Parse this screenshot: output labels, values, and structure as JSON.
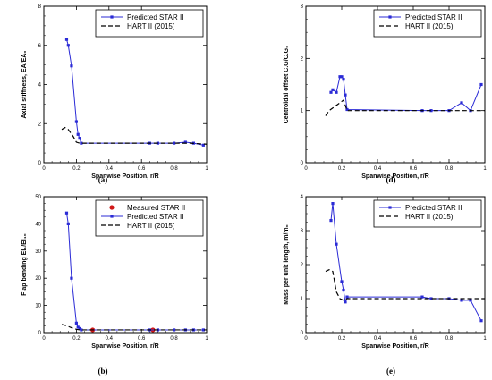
{
  "chart_data": [
    {
      "id": "a",
      "type": "line",
      "caption": "(a)",
      "xlabel": "Spanwise Position, r/R",
      "ylabel": "Axial stiffness, EA/EA₀",
      "xlim": [
        0,
        1
      ],
      "ylim": [
        0,
        8
      ],
      "xticks": [
        "0",
        "0.2",
        "0.4",
        "0.6",
        "0.8",
        "1"
      ],
      "yticks": [
        "0",
        "2",
        "4",
        "6",
        "8"
      ],
      "legend_position": "top-right",
      "series": [
        {
          "name": "Predicted STAR II",
          "color": "#2b2bd6",
          "style": "solid-square",
          "x": [
            0.14,
            0.15,
            0.17,
            0.2,
            0.21,
            0.22,
            0.23,
            0.65,
            0.7,
            0.8,
            0.87,
            0.92,
            0.98
          ],
          "y": [
            6.3,
            6.0,
            4.95,
            2.1,
            1.45,
            1.25,
            1.0,
            1.0,
            1.0,
            1.0,
            1.05,
            1.0,
            0.9
          ]
        },
        {
          "name": "HART II (2015)",
          "color": "#000000",
          "style": "dashed",
          "x": [
            0.11,
            0.13,
            0.15,
            0.18,
            0.2,
            0.22,
            0.25,
            0.4,
            0.6,
            0.8,
            0.9,
            1.0
          ],
          "y": [
            1.7,
            1.8,
            1.7,
            1.35,
            1.05,
            1.0,
            1.0,
            1.0,
            1.0,
            1.0,
            1.0,
            0.95
          ]
        }
      ]
    },
    {
      "id": "d",
      "type": "line",
      "caption": "(d)",
      "xlabel": "Spanwise Position, r/R",
      "ylabel": "Centroidal offset  C.G/C.G₀",
      "xlim": [
        0,
        1
      ],
      "ylim": [
        0,
        3
      ],
      "xticks": [
        "0",
        "0.2",
        "0.4",
        "0.6",
        "0.8",
        "1"
      ],
      "yticks": [
        "0",
        "1",
        "2",
        "3"
      ],
      "legend_position": "top-right",
      "series": [
        {
          "name": "Predicted STAR II",
          "color": "#2b2bd6",
          "style": "solid-square",
          "x": [
            0.14,
            0.15,
            0.17,
            0.19,
            0.2,
            0.21,
            0.22,
            0.23,
            0.65,
            0.7,
            0.8,
            0.87,
            0.92,
            0.98
          ],
          "y": [
            1.35,
            1.4,
            1.35,
            1.65,
            1.65,
            1.6,
            1.3,
            1.02,
            1.0,
            1.0,
            1.0,
            1.15,
            1.0,
            1.5
          ]
        },
        {
          "name": "HART II (2015)",
          "color": "#000000",
          "style": "dashed",
          "x": [
            0.11,
            0.13,
            0.15,
            0.17,
            0.19,
            0.21,
            0.23,
            0.4,
            0.6,
            0.8,
            1.0
          ],
          "y": [
            0.9,
            1.0,
            1.05,
            1.1,
            1.15,
            1.2,
            1.0,
            1.0,
            1.0,
            1.0,
            1.0
          ]
        }
      ]
    },
    {
      "id": "b",
      "type": "line",
      "caption": "(b)",
      "xlabel": "Spanwise Position, r/R",
      "ylabel": "Flap bending EI₁/EI₁₀",
      "xlim": [
        0,
        1
      ],
      "ylim": [
        0,
        50
      ],
      "xticks": [
        "0",
        "0.2",
        "0.4",
        "0.6",
        "0.8",
        "1"
      ],
      "yticks": [
        "0",
        "10",
        "20",
        "30",
        "40",
        "50"
      ],
      "legend_position": "top-right",
      "series": [
        {
          "name": "Measured STAR II",
          "color": "#d01818",
          "style": "circle",
          "x": [
            0.3,
            0.67
          ],
          "y": [
            1.0,
            1.0
          ]
        },
        {
          "name": "Predicted STAR II",
          "color": "#2b2bd6",
          "style": "solid-square",
          "x": [
            0.14,
            0.15,
            0.17,
            0.2,
            0.21,
            0.22,
            0.23,
            0.65,
            0.7,
            0.8,
            0.87,
            0.92,
            0.98
          ],
          "y": [
            44,
            40,
            20,
            3.5,
            2.0,
            1.5,
            1.0,
            1.0,
            1.0,
            1.0,
            1.0,
            1.0,
            1.0
          ]
        },
        {
          "name": "HART II (2015)",
          "color": "#000000",
          "style": "dashed",
          "x": [
            0.11,
            0.14,
            0.17,
            0.2,
            0.22,
            0.25,
            0.4,
            0.6,
            0.8,
            1.0
          ],
          "y": [
            3.0,
            2.5,
            1.8,
            1.2,
            1.0,
            1.0,
            1.0,
            1.0,
            1.0,
            1.0
          ]
        }
      ]
    },
    {
      "id": "e",
      "type": "line",
      "caption": "(e)",
      "xlabel": "Spanwise Position, r/R",
      "ylabel": "Mass per unit length, m/m₀",
      "xlim": [
        0,
        1
      ],
      "ylim": [
        0,
        4
      ],
      "xticks": [
        "0",
        "0.2",
        "0.4",
        "0.6",
        "0.8",
        "1"
      ],
      "yticks": [
        "0",
        "1",
        "2",
        "3",
        "4"
      ],
      "legend_position": "top-right",
      "series": [
        {
          "name": "Predicted STAR II",
          "color": "#2b2bd6",
          "style": "solid-square",
          "x": [
            0.14,
            0.15,
            0.17,
            0.2,
            0.21,
            0.22,
            0.23,
            0.65,
            0.7,
            0.8,
            0.87,
            0.92,
            0.98
          ],
          "y": [
            3.3,
            3.8,
            2.6,
            1.5,
            1.25,
            0.9,
            1.05,
            1.05,
            1.0,
            1.0,
            0.95,
            0.95,
            0.35
          ]
        },
        {
          "name": "HART II (2015)",
          "color": "#000000",
          "style": "dashed",
          "x": [
            0.11,
            0.13,
            0.15,
            0.17,
            0.19,
            0.21,
            0.23,
            0.4,
            0.6,
            0.8,
            1.0
          ],
          "y": [
            1.8,
            1.85,
            1.8,
            1.2,
            1.0,
            0.95,
            1.0,
            1.0,
            1.0,
            1.0,
            1.0
          ]
        }
      ]
    }
  ]
}
